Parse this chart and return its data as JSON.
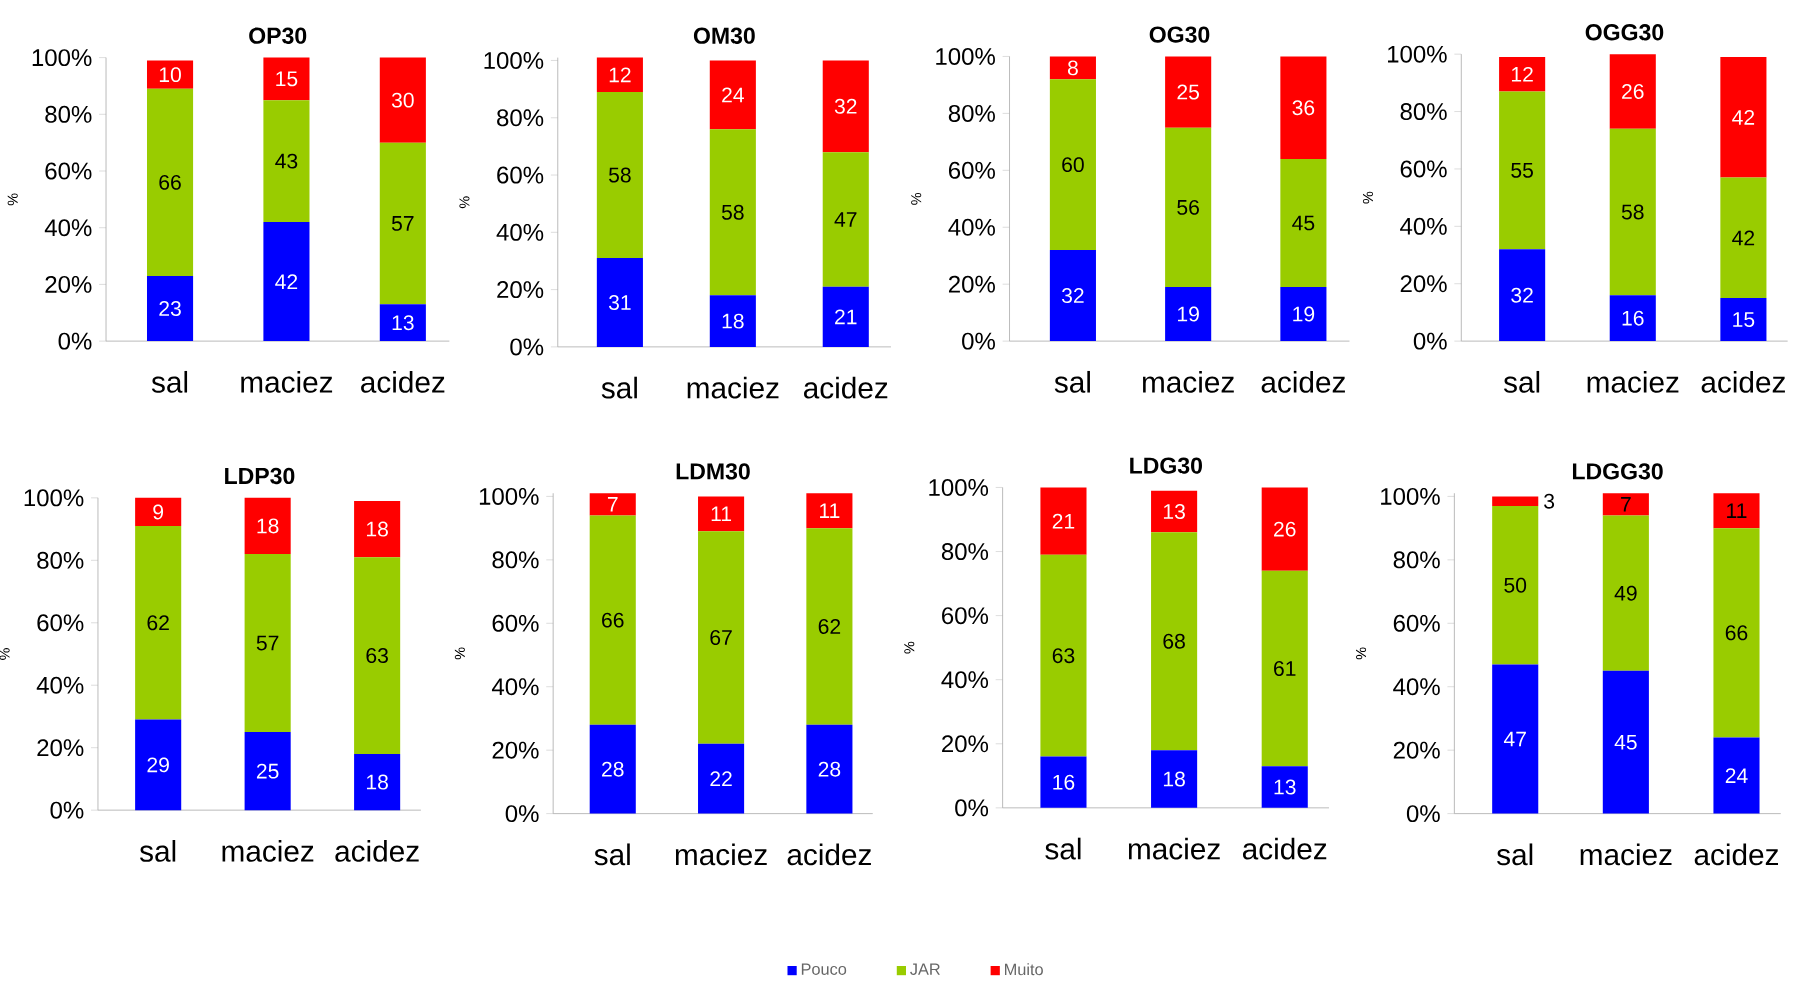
{
  "chart_data": [
    {
      "type": "bar",
      "title": "OP30",
      "ylabel": "%",
      "categories": [
        "sal",
        "maciez",
        "acidez"
      ],
      "stacked": true,
      "data_labels": true,
      "ylim": [
        0,
        100
      ],
      "yticks": [
        {
          "value": 0,
          "label": "0%"
        },
        {
          "value": 20,
          "label": "20%"
        },
        {
          "value": 40,
          "label": "40%"
        },
        {
          "value": 60,
          "label": "60%"
        },
        {
          "value": 80,
          "label": "80%"
        },
        {
          "value": 100,
          "label": "100%"
        }
      ],
      "series": [
        {
          "color": "#0000ff",
          "values": [
            23,
            42,
            13
          ]
        },
        {
          "color": "#99cc00",
          "values": [
            66,
            43,
            57
          ]
        },
        {
          "color": "#ff0000",
          "values": [
            10,
            15,
            30
          ]
        }
      ]
    },
    {
      "type": "bar",
      "title": "OM30",
      "ylabel": "%",
      "categories": [
        "sal",
        "maciez",
        "acidez"
      ],
      "stacked": true,
      "data_labels": true,
      "ylim": [
        0,
        101
      ],
      "yticks": [
        {
          "value": 0,
          "label": "0%"
        },
        {
          "value": 20,
          "label": "20%"
        },
        {
          "value": 40,
          "label": "40%"
        },
        {
          "value": 60,
          "label": "60%"
        },
        {
          "value": 80,
          "label": "80%"
        },
        {
          "value": 100,
          "label": "100%"
        }
      ],
      "series": [
        {
          "color": "#0000ff",
          "values": [
            31,
            18,
            21
          ]
        },
        {
          "color": "#99cc00",
          "values": [
            58,
            58,
            47
          ]
        },
        {
          "color": "#ff0000",
          "values": [
            12,
            24,
            32
          ]
        }
      ]
    },
    {
      "type": "bar",
      "title": "OG30",
      "ylabel": "%",
      "categories": [
        "sal",
        "maciez",
        "acidez"
      ],
      "stacked": true,
      "data_labels": true,
      "ylim": [
        0,
        100
      ],
      "yticks": [
        {
          "value": 0,
          "label": "0%"
        },
        {
          "value": 20,
          "label": "20%"
        },
        {
          "value": 40,
          "label": "40%"
        },
        {
          "value": 60,
          "label": "60%"
        },
        {
          "value": 80,
          "label": "80%"
        },
        {
          "value": 100,
          "label": "100%"
        }
      ],
      "series": [
        {
          "color": "#0000ff",
          "values": [
            32,
            19,
            19
          ]
        },
        {
          "color": "#99cc00",
          "values": [
            60,
            56,
            45
          ]
        },
        {
          "color": "#ff0000",
          "values": [
            8,
            25,
            36
          ]
        }
      ]
    },
    {
      "type": "bar",
      "title": "OGG30",
      "ylabel": "%",
      "categories": [
        "sal",
        "maciez",
        "acidez"
      ],
      "stacked": true,
      "data_labels": true,
      "ylim": [
        0,
        100
      ],
      "yticks": [
        {
          "value": 0,
          "label": "0%"
        },
        {
          "value": 20,
          "label": "20%"
        },
        {
          "value": 40,
          "label": "40%"
        },
        {
          "value": 60,
          "label": "60%"
        },
        {
          "value": 80,
          "label": "80%"
        },
        {
          "value": 100,
          "label": "100%"
        }
      ],
      "series": [
        {
          "color": "#0000ff",
          "values": [
            32,
            16,
            15
          ]
        },
        {
          "color": "#99cc00",
          "values": [
            55,
            58,
            42
          ]
        },
        {
          "color": "#ff0000",
          "values": [
            12,
            26,
            42
          ]
        }
      ]
    },
    {
      "type": "bar",
      "title": "LDP30",
      "ylabel": "%",
      "categories": [
        "sal",
        "maciez",
        "acidez"
      ],
      "stacked": true,
      "data_labels": true,
      "ylim": [
        0,
        100
      ],
      "yticks": [
        {
          "value": 0,
          "label": "0%"
        },
        {
          "value": 20,
          "label": "20%"
        },
        {
          "value": 40,
          "label": "40%"
        },
        {
          "value": 60,
          "label": "60%"
        },
        {
          "value": 80,
          "label": "80%"
        },
        {
          "value": 100,
          "label": "100%"
        }
      ],
      "series": [
        {
          "color": "#0000ff",
          "values": [
            29,
            25,
            18
          ]
        },
        {
          "color": "#99cc00",
          "values": [
            62,
            57,
            63
          ]
        },
        {
          "color": "#ff0000",
          "values": [
            9,
            18,
            18
          ]
        }
      ]
    },
    {
      "type": "bar",
      "title": "LDM30",
      "ylabel": "%",
      "categories": [
        "sal",
        "maciez",
        "acidez"
      ],
      "stacked": true,
      "data_labels": true,
      "legend": "bottom",
      "ylim": [
        0,
        101
      ],
      "yticks": [
        {
          "value": 0,
          "label": "0%"
        },
        {
          "value": 20,
          "label": "20%"
        },
        {
          "value": 40,
          "label": "40%"
        },
        {
          "value": 60,
          "label": "60%"
        },
        {
          "value": 80,
          "label": "80%"
        },
        {
          "value": 100,
          "label": "100%"
        }
      ],
      "series": [
        {
          "name": "Pouco",
          "color": "#0000ff",
          "values": [
            28,
            22,
            28
          ]
        },
        {
          "name": "JAR",
          "color": "#99cc00",
          "values": [
            66,
            67,
            62
          ]
        },
        {
          "name": "Muito",
          "color": "#ff0000",
          "values": [
            7,
            11,
            11
          ]
        }
      ]
    },
    {
      "type": "bar",
      "title": "LDG30",
      "ylabel": "%",
      "categories": [
        "sal",
        "maciez",
        "acidez"
      ],
      "stacked": true,
      "data_labels": true,
      "ylim": [
        0,
        100
      ],
      "yticks": [
        {
          "value": 0,
          "label": "0%"
        },
        {
          "value": 20,
          "label": "20%"
        },
        {
          "value": 40,
          "label": "40%"
        },
        {
          "value": 60,
          "label": "60%"
        },
        {
          "value": 80,
          "label": "80%"
        },
        {
          "value": 100,
          "label": "100%"
        }
      ],
      "series": [
        {
          "color": "#0000ff",
          "values": [
            16,
            18,
            13
          ]
        },
        {
          "color": "#99cc00",
          "values": [
            63,
            68,
            61
          ]
        },
        {
          "color": "#ff0000",
          "values": [
            21,
            13,
            26
          ]
        }
      ]
    },
    {
      "type": "bar",
      "title": "LDGG30",
      "ylabel": "%",
      "categories": [
        "sal",
        "maciez",
        "acidez"
      ],
      "stacked": true,
      "data_labels": true,
      "ylim": [
        0,
        101
      ],
      "yticks": [
        {
          "value": 0,
          "label": "0%"
        },
        {
          "value": 20,
          "label": "20%"
        },
        {
          "value": 40,
          "label": "40%"
        },
        {
          "value": 60,
          "label": "60%"
        },
        {
          "value": 80,
          "label": "80%"
        },
        {
          "value": 100,
          "label": "100%"
        }
      ],
      "series": [
        {
          "color": "#0000ff",
          "values": [
            47,
            45,
            24
          ]
        },
        {
          "color": "#99cc00",
          "values": [
            50,
            49,
            66
          ]
        },
        {
          "color": "#ff0000",
          "values": [
            3,
            7,
            11
          ]
        }
      ]
    }
  ]
}
